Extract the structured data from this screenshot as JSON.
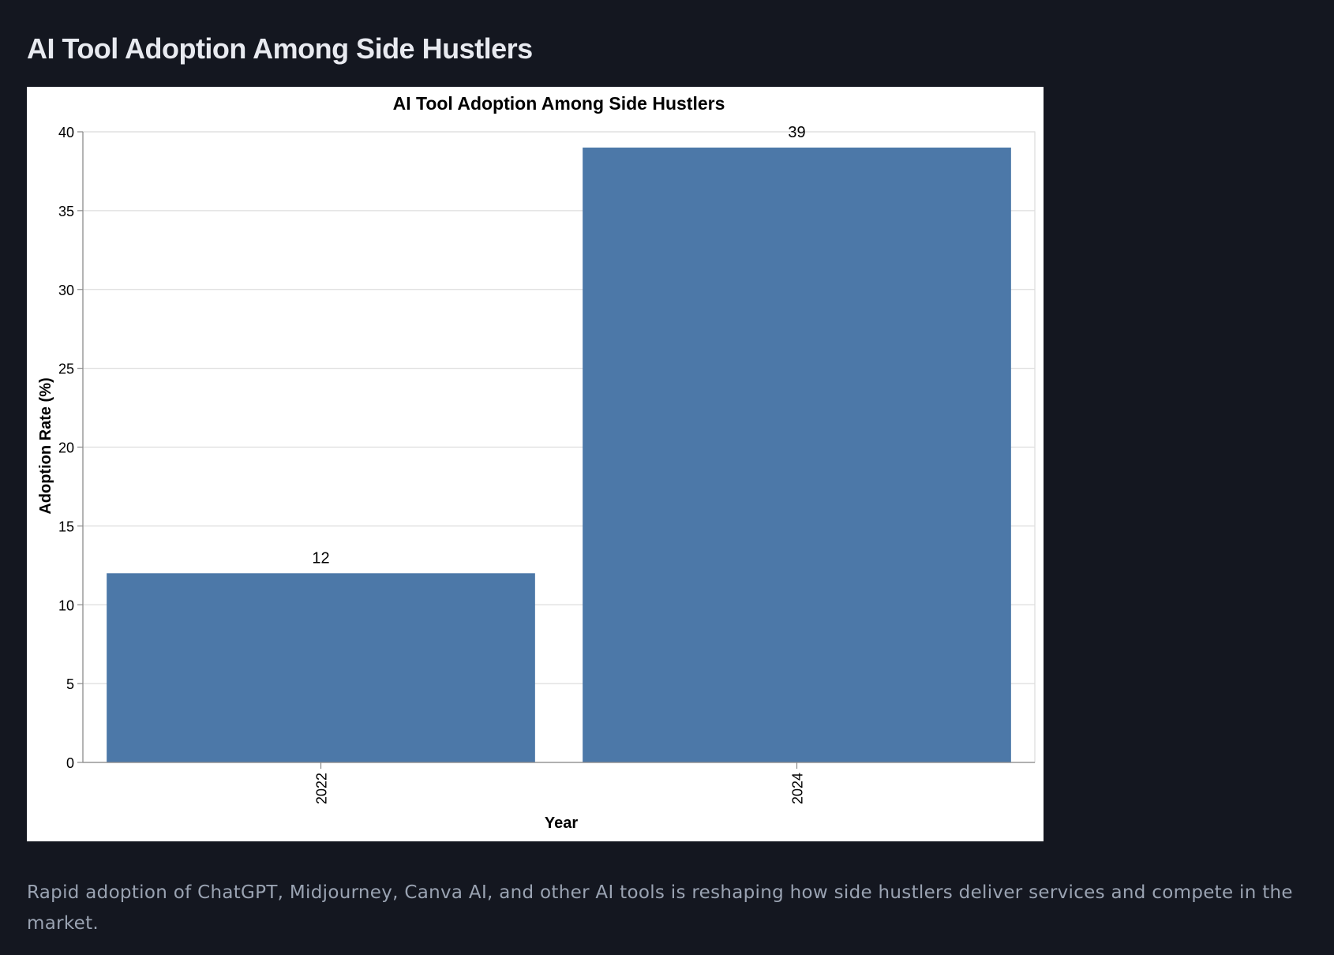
{
  "page": {
    "heading": "AI Tool Adoption Among Side Hustlers",
    "caption": "Rapid adoption of ChatGPT, Midjourney, Canva AI, and other AI tools is reshaping how side hustlers deliver services and compete in the market."
  },
  "colors": {
    "background": "#141720",
    "bar": "#4c78a8",
    "card": "#ffffff"
  },
  "chart_data": {
    "type": "bar",
    "title": "AI Tool Adoption Among Side Hustlers",
    "xlabel": "Year",
    "ylabel": "Adoption Rate (%)",
    "categories": [
      "2022",
      "2024"
    ],
    "values": [
      12,
      39
    ],
    "data_labels": [
      "12",
      "39"
    ],
    "ylim": [
      0,
      40
    ],
    "yticks": [
      "0",
      "5",
      "10",
      "15",
      "20",
      "25",
      "30",
      "35",
      "40"
    ],
    "grid": true,
    "legend": "none"
  }
}
